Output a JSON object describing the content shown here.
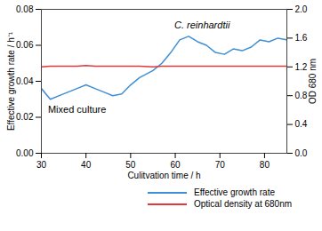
{
  "chart_data": {
    "type": "line",
    "xlabel": "Culitvation time / h",
    "ylabel": "Effective growth rate / h⁻¹",
    "y2label": "OD 680 nm",
    "x": [
      30,
      32,
      35,
      38,
      40,
      42,
      44,
      46,
      48,
      50,
      52,
      55,
      57,
      59,
      61,
      63,
      65,
      67,
      69,
      71,
      73,
      75,
      77,
      79,
      81,
      83,
      85
    ],
    "series": [
      {
        "name": "Effective growth rate",
        "color": "#3f8fd4",
        "values": [
          0.036,
          0.03,
          0.033,
          0.036,
          0.038,
          0.036,
          0.034,
          0.032,
          0.033,
          0.038,
          0.042,
          0.046,
          0.05,
          0.056,
          0.063,
          0.065,
          0.062,
          0.06,
          0.056,
          0.055,
          0.058,
          0.057,
          0.059,
          0.063,
          0.062,
          0.064,
          0.063
        ]
      },
      {
        "name": "Optical density at 680nm",
        "color": "#e03a3a",
        "axis": "y2",
        "values": [
          1.2,
          1.21,
          1.21,
          1.21,
          1.22,
          1.21,
          1.21,
          1.21,
          1.21,
          1.21,
          1.21,
          1.2,
          1.21,
          1.21,
          1.21,
          1.21,
          1.21,
          1.21,
          1.21,
          1.21,
          1.21,
          1.21,
          1.21,
          1.21,
          1.21,
          1.21,
          1.21
        ]
      }
    ],
    "annotations": [
      {
        "text": "C. reinhardtii",
        "x": 66,
        "y": 0.071,
        "style": "italic"
      },
      {
        "text": "Mixed culture",
        "x": 38,
        "y": 0.024
      }
    ],
    "xlim": [
      30,
      85
    ],
    "xticks": [
      30,
      40,
      50,
      60,
      70,
      80
    ],
    "ylim": [
      0,
      0.08
    ],
    "yticks": [
      {
        "value": 0,
        "label": "0.00"
      },
      {
        "value": 0.02,
        "label": "0.02"
      },
      {
        "value": 0.04,
        "label": "0.04"
      },
      {
        "value": 0.06,
        "label": "0.06"
      },
      {
        "value": 0.08,
        "label": "0.08"
      }
    ],
    "y2lim": [
      0,
      2
    ],
    "y2ticks": [
      {
        "value": 0,
        "label": "0.0"
      },
      {
        "value": 0.4,
        "label": "0.4"
      },
      {
        "value": 0.8,
        "label": "0.8"
      },
      {
        "value": 1.2,
        "label": "1.2"
      },
      {
        "value": 1.6,
        "label": "1.6"
      },
      {
        "value": 2,
        "label": "2.0"
      }
    ],
    "grid": false,
    "legend": "bottom"
  }
}
